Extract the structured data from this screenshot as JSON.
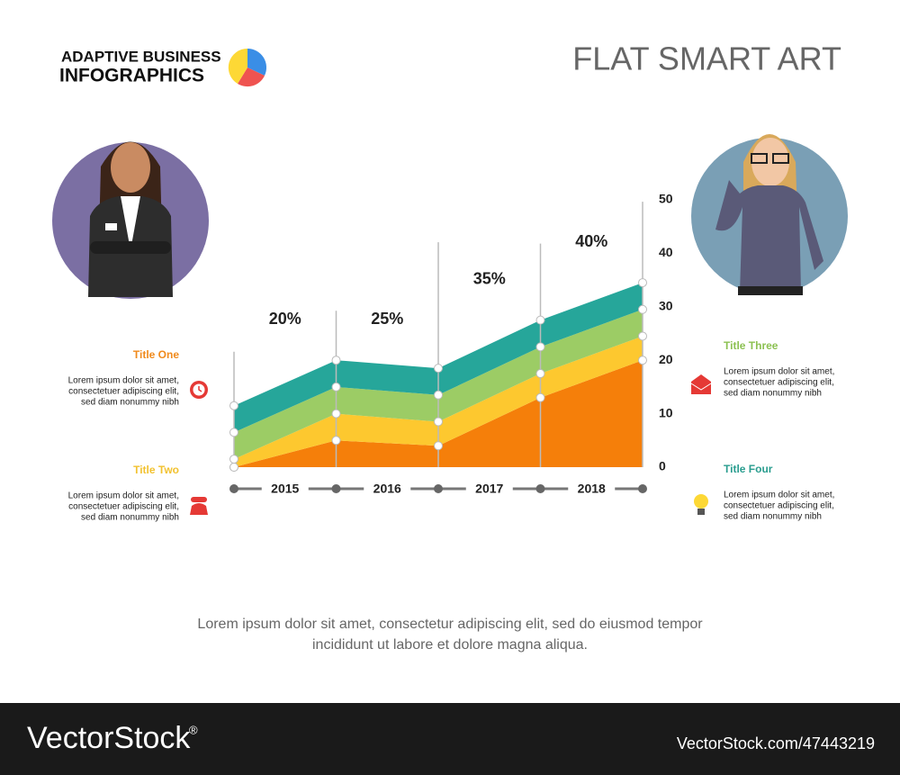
{
  "header": {
    "brand_line1": "ADAPTIVE BUSINESS",
    "brand_line2": "INFOGRAPHICS",
    "title": "FLAT SMART ART"
  },
  "chart_data": {
    "type": "stacked_area",
    "x": [
      2014.5,
      2015.5,
      2016.5,
      2017.5,
      2018.5
    ],
    "xlim": [
      2014.5,
      2018.5
    ],
    "xticks": [
      2015,
      2016,
      2017,
      2018
    ],
    "ylim": [
      0,
      50
    ],
    "yticks": [
      0,
      10,
      20,
      30,
      40,
      50
    ],
    "series": [
      {
        "color": "#f57f0a",
        "values": [
          0,
          5,
          4,
          13,
          20
        ]
      },
      {
        "color": "#fdc82f",
        "values": [
          1.5,
          5,
          4.5,
          4.5,
          4.5
        ]
      },
      {
        "color": "#9ccc65",
        "values": [
          5,
          5,
          5,
          5,
          5
        ]
      },
      {
        "color": "#26a69a",
        "values": [
          5,
          5,
          5,
          5,
          5
        ]
      }
    ],
    "annotations": [
      {
        "x": 2015,
        "text": "20%"
      },
      {
        "x": 2016,
        "text": "25%"
      },
      {
        "x": 2017,
        "text": "35%"
      },
      {
        "x": 2018,
        "text": "40%"
      }
    ]
  },
  "side_notes": [
    {
      "title": "Title One",
      "color": "#f08a1c",
      "lines": [
        "Lorem ipsum dolor sit amet,",
        "consectetuer adipiscing elit,",
        "sed diam nonummy nibh"
      ]
    },
    {
      "title": "Title Two",
      "color": "#f2c230",
      "lines": [
        "Lorem ipsum dolor sit amet,",
        "consectetuer adipiscing elit,",
        "sed diam nonummy nibh"
      ]
    },
    {
      "title": "Title Three",
      "color": "#8cc152",
      "lines": [
        "Lorem ipsum dolor sit amet,",
        "consectetuer adipiscing elit,",
        "sed diam nonummy nibh"
      ]
    },
    {
      "title": "Title Four",
      "color": "#2a9d8f",
      "lines": [
        "Lorem ipsum dolor sit amet,",
        "consectetuer adipiscing elit,",
        "sed diam nonummy nibh"
      ]
    }
  ],
  "caption": [
    "Lorem ipsum dolor sit amet, consectetur adipiscing elit, sed do eiusmod tempor",
    "incididunt ut labore et dolore magna aliqua."
  ],
  "footer": {
    "brand": "VectorStock",
    "reg": "®",
    "url": "VectorStock.com/47443219"
  }
}
